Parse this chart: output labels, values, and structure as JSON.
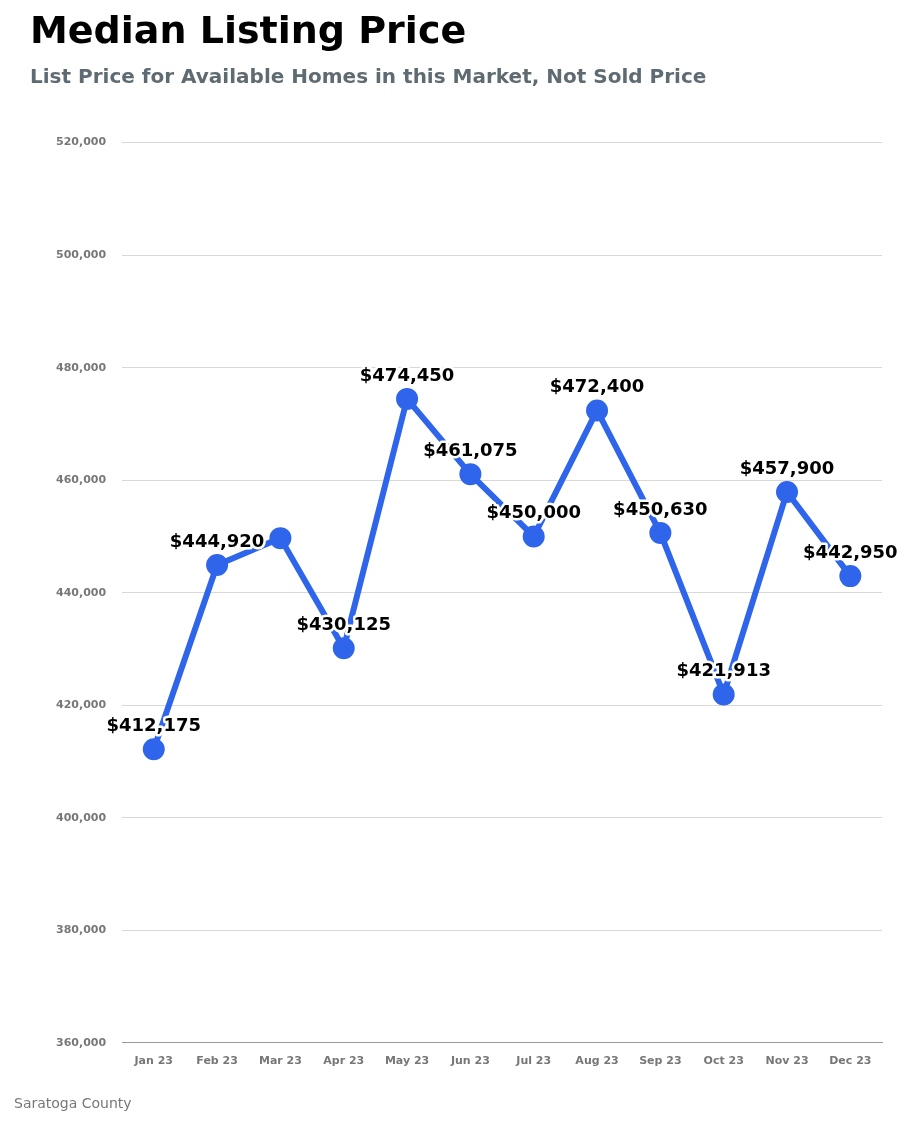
{
  "chart_data": {
    "type": "line",
    "title": "Median Listing Price",
    "subtitle": "List Price for Available Homes in this Market, Not Sold Price",
    "categories": [
      "Jan 23",
      "Feb 23",
      "Mar 23",
      "Apr 23",
      "May 23",
      "Jun 23",
      "Jul 23",
      "Aug 23",
      "Sep 23",
      "Oct 23",
      "Nov 23",
      "Dec 23"
    ],
    "series": [
      {
        "color": "#2f65ea",
        "values": [
          412175,
          444920,
          449700,
          430125,
          474450,
          461075,
          450000,
          472400,
          450630,
          421913,
          457900,
          442950
        ],
        "value_labels": [
          "$412,175",
          "$444,920",
          null,
          "$430,125",
          "$474,450",
          "$461,075",
          "$450,000",
          "$472,400",
          "$450,630",
          "$421,913",
          "$457,900",
          "$442,950"
        ]
      }
    ],
    "ylim": [
      360000,
      520000
    ],
    "yticks": [
      {
        "value": 360000,
        "label": "360,000"
      },
      {
        "value": 380000,
        "label": "380,000"
      },
      {
        "value": 400000,
        "label": "400,000"
      },
      {
        "value": 420000,
        "label": "420,000"
      },
      {
        "value": 440000,
        "label": "440,000"
      },
      {
        "value": 460000,
        "label": "460,000"
      },
      {
        "value": 480000,
        "label": "480,000"
      },
      {
        "value": 500000,
        "label": "500,000"
      },
      {
        "value": 520000,
        "label": "520,000"
      }
    ],
    "grid": "y",
    "legend": false,
    "marker": "circle",
    "line_style": "solid",
    "annotations": [
      "Saratoga County"
    ]
  }
}
